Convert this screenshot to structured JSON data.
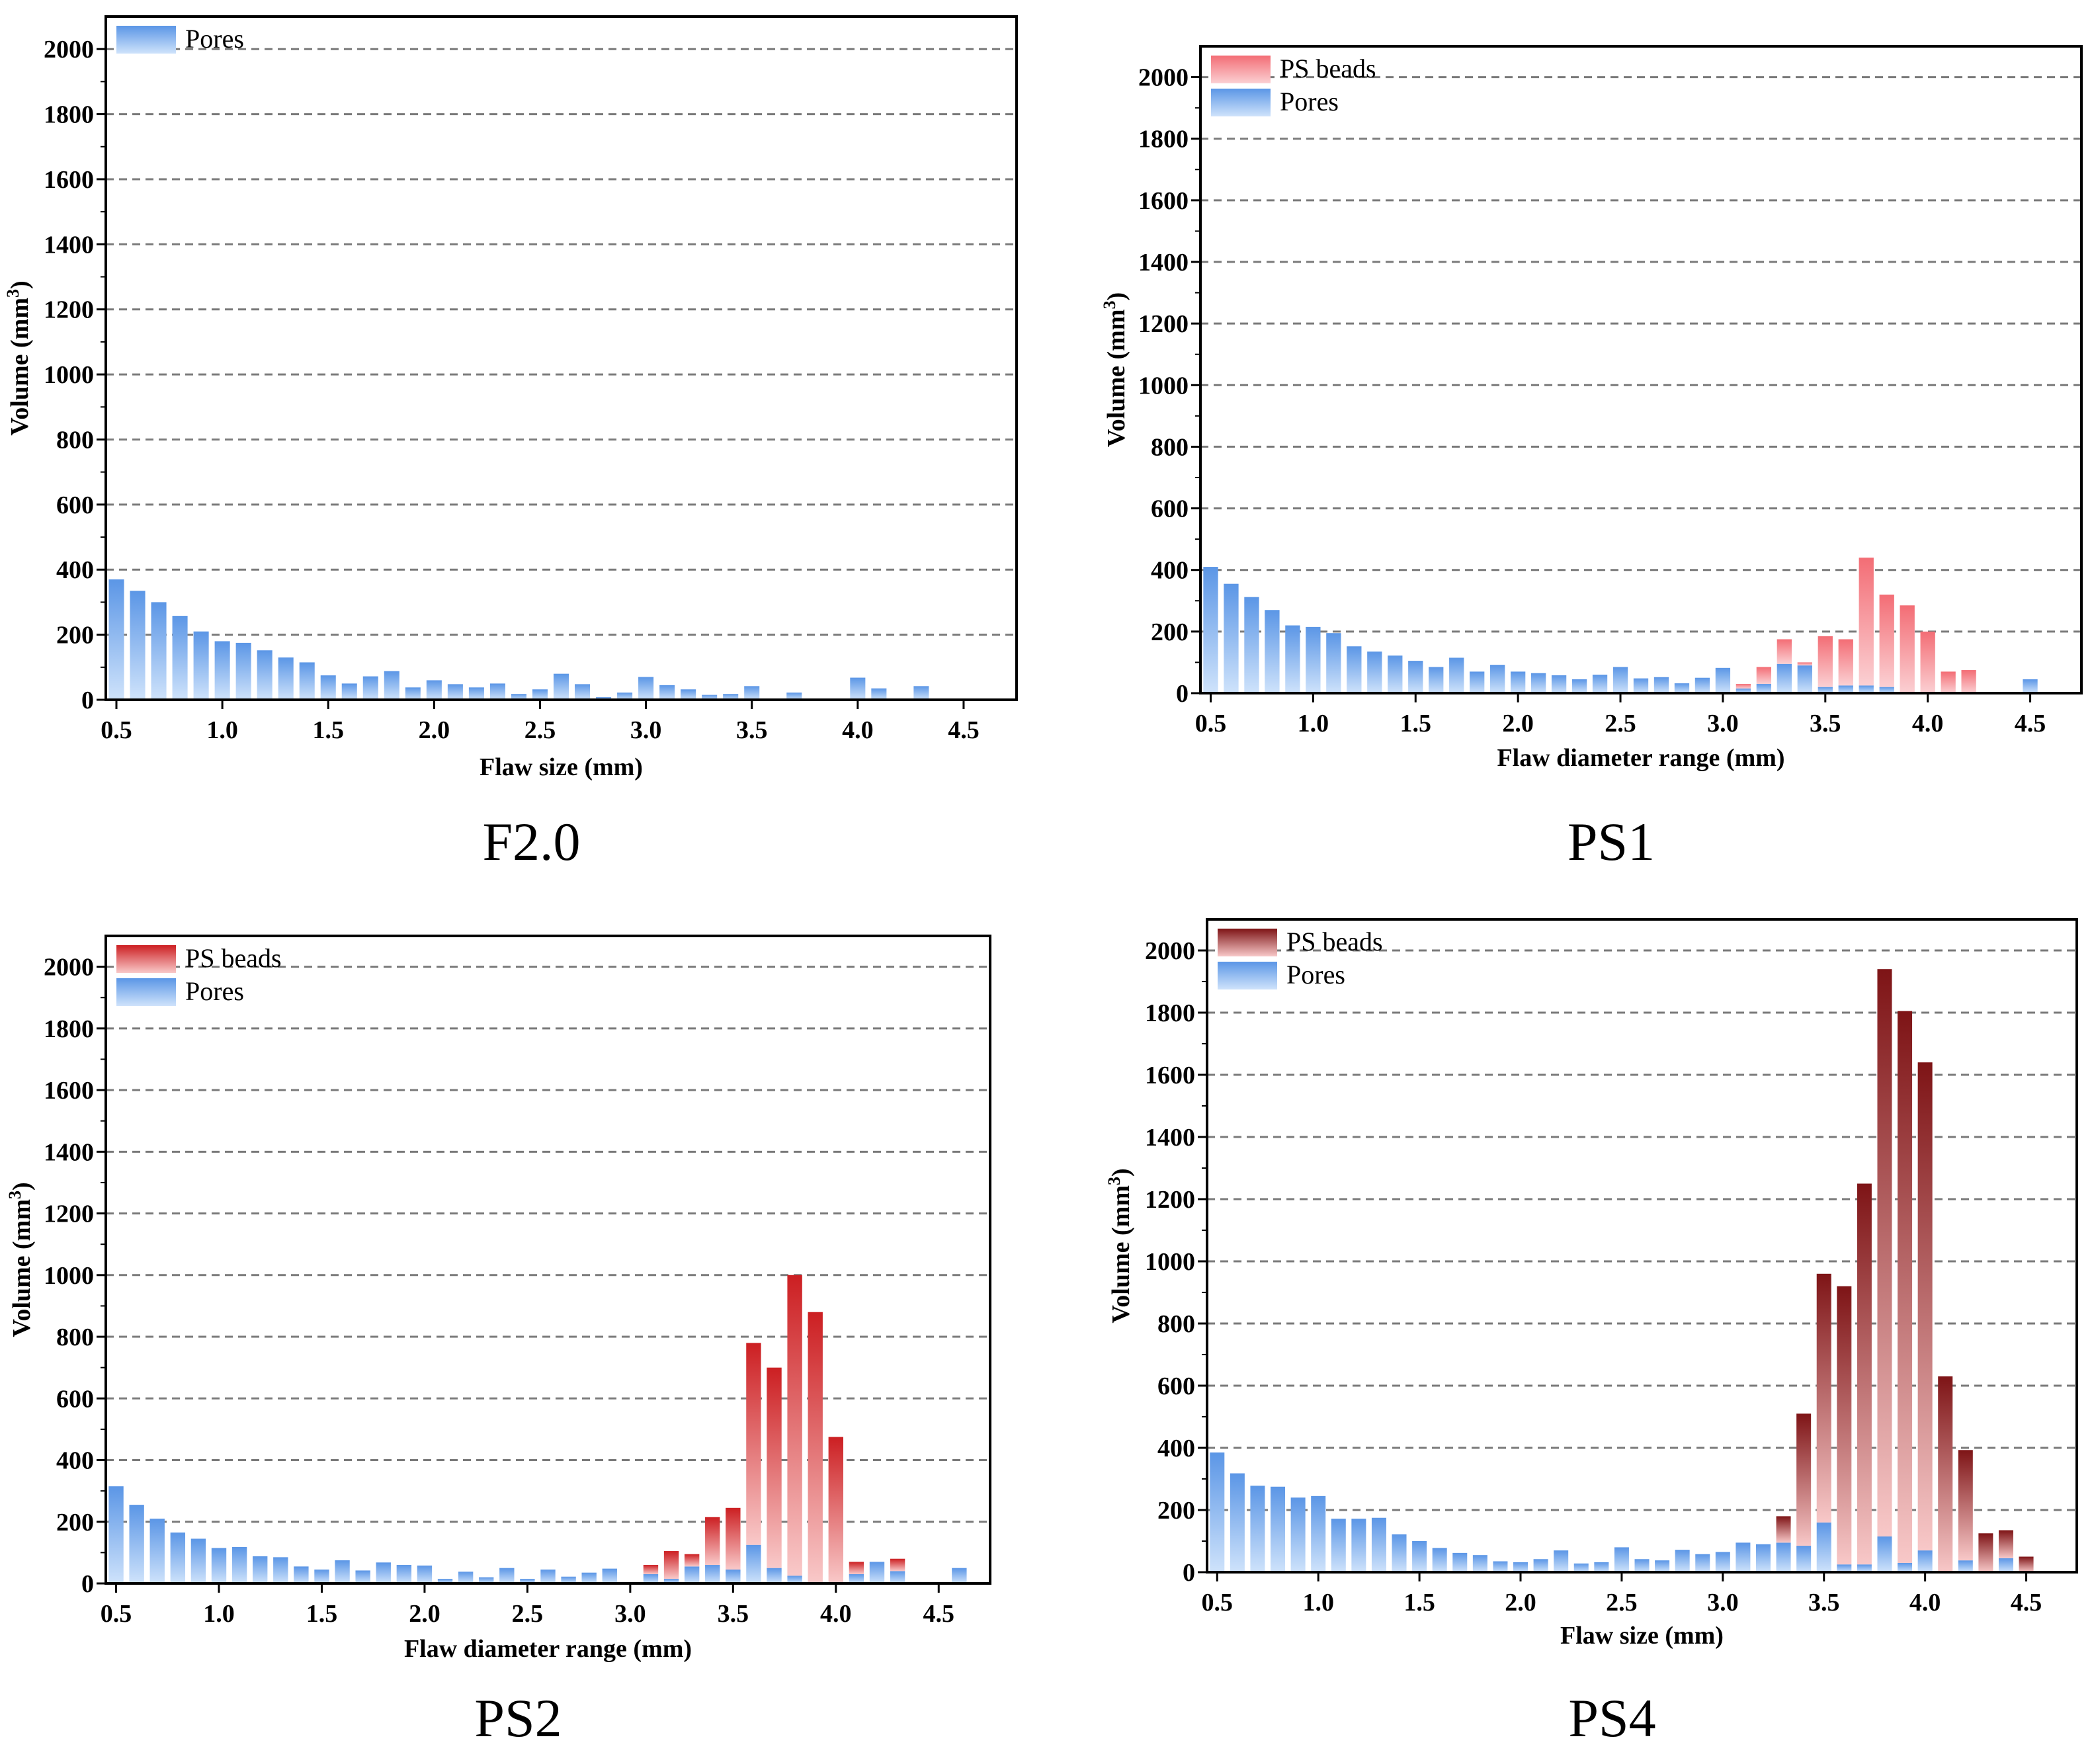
{
  "figure": {
    "panels": [
      "F2.0",
      "PS1",
      "PS2",
      "PS4"
    ]
  },
  "colors": {
    "pores_dark": "#5b96e6",
    "pores_light": "#cfe3fb",
    "ps1_dark": "#f36d75",
    "ps1_light": "#fbd0d3",
    "ps2_dark": "#cc1f22",
    "ps2_light": "#f9c9c9",
    "ps4_dark": "#7e1416",
    "ps4_light": "#f8c8c8",
    "grid": "#7a7a7a",
    "axis": "#000000"
  },
  "chart_data": [
    {
      "id": "F2.0",
      "type": "bar",
      "stacked": true,
      "caption": "F2.0",
      "xlabel": "Flaw size (mm)",
      "ylabel": "Volume (mm",
      "ylabel_sup": "3",
      "ylabel_end": ")",
      "xlim": [
        0.45,
        4.75
      ],
      "ylim": [
        0,
        2100
      ],
      "xticks": [
        "0.5",
        "1.0",
        "1.5",
        "2.0",
        "2.5",
        "3.0",
        "3.5",
        "4.0",
        "4.5"
      ],
      "yticks": [
        "0",
        "200",
        "400",
        "600",
        "800",
        "1000",
        "1200",
        "1400",
        "1600",
        "1800",
        "2000"
      ],
      "grid": "horizontal dashed",
      "legend": [
        "Pores"
      ],
      "legend_position": "top-left",
      "x": [
        0.5,
        0.6,
        0.7,
        0.8,
        0.9,
        1.0,
        1.1,
        1.2,
        1.3,
        1.4,
        1.5,
        1.6,
        1.7,
        1.8,
        1.9,
        2.0,
        2.1,
        2.2,
        2.3,
        2.4,
        2.5,
        2.6,
        2.7,
        2.8,
        2.9,
        3.0,
        3.1,
        3.2,
        3.3,
        3.4,
        3.5,
        3.6,
        3.7,
        3.8,
        3.9,
        4.0,
        4.1,
        4.2,
        4.3,
        4.4
      ],
      "series": [
        {
          "name": "Pores",
          "values": [
            370,
            335,
            300,
            258,
            210,
            180,
            175,
            152,
            130,
            115,
            75,
            50,
            72,
            88,
            38,
            60,
            48,
            38,
            50,
            18,
            32,
            80,
            48,
            8,
            22,
            70,
            45,
            32,
            15,
            18,
            42,
            0,
            22,
            0,
            0,
            68,
            35,
            0,
            42,
            0
          ]
        }
      ]
    },
    {
      "id": "PS1",
      "type": "bar",
      "stacked": true,
      "caption": "PS1",
      "xlabel": "Flaw diameter range (mm)",
      "ylabel": "Volume (mm",
      "ylabel_sup": "3",
      "ylabel_end": ")",
      "xlim": [
        0.45,
        4.75
      ],
      "ylim": [
        0,
        2100
      ],
      "xticks": [
        "0.5",
        "1.0",
        "1.5",
        "2.0",
        "2.5",
        "3.0",
        "3.5",
        "4.0",
        "4.5"
      ],
      "yticks": [
        "0",
        "200",
        "400",
        "600",
        "800",
        "1000",
        "1200",
        "1400",
        "1600",
        "1800",
        "2000"
      ],
      "grid": "horizontal dashed",
      "legend": [
        "PS beads",
        "Pores"
      ],
      "legend_position": "top-left",
      "x": [
        0.5,
        0.6,
        0.7,
        0.8,
        0.9,
        1.0,
        1.1,
        1.2,
        1.3,
        1.4,
        1.5,
        1.6,
        1.7,
        1.8,
        1.9,
        2.0,
        2.1,
        2.2,
        2.3,
        2.4,
        2.5,
        2.6,
        2.7,
        2.8,
        2.9,
        3.0,
        3.1,
        3.2,
        3.3,
        3.4,
        3.5,
        3.6,
        3.7,
        3.8,
        3.9,
        4.0,
        4.1,
        4.2,
        4.3,
        4.4,
        4.5
      ],
      "series": [
        {
          "name": "Pores",
          "values": [
            410,
            355,
            312,
            270,
            220,
            215,
            195,
            152,
            135,
            122,
            105,
            85,
            115,
            70,
            92,
            70,
            65,
            58,
            45,
            60,
            85,
            48,
            52,
            32,
            50,
            82,
            15,
            30,
            95,
            90,
            20,
            25,
            25,
            20,
            0,
            0,
            0,
            0,
            0,
            0,
            45
          ]
        },
        {
          "name": "PS beads",
          "values": [
            0,
            0,
            0,
            0,
            0,
            0,
            0,
            0,
            0,
            0,
            0,
            0,
            0,
            0,
            0,
            0,
            0,
            0,
            0,
            0,
            0,
            0,
            0,
            0,
            0,
            0,
            15,
            55,
            80,
            10,
            165,
            150,
            415,
            300,
            285,
            200,
            70,
            75,
            0,
            0,
            0
          ]
        }
      ]
    },
    {
      "id": "PS2",
      "type": "bar",
      "stacked": true,
      "caption": "PS2",
      "xlabel": "Flaw diameter range (mm)",
      "ylabel": "Volume (mm",
      "ylabel_sup": "3",
      "ylabel_end": ")",
      "xlim": [
        0.45,
        4.75
      ],
      "ylim": [
        0,
        2100
      ],
      "xticks": [
        "0.5",
        "1.0",
        "1.5",
        "2.0",
        "2.5",
        "3.0",
        "3.5",
        "4.0",
        "4.5"
      ],
      "yticks": [
        "0",
        "200",
        "400",
        "600",
        "800",
        "1000",
        "1200",
        "1400",
        "1600",
        "1800",
        "2000"
      ],
      "grid": "horizontal dashed",
      "legend": [
        "PS beads",
        "Pores"
      ],
      "legend_position": "top-left",
      "x": [
        0.5,
        0.6,
        0.7,
        0.8,
        0.9,
        1.0,
        1.1,
        1.2,
        1.3,
        1.4,
        1.5,
        1.6,
        1.7,
        1.8,
        1.9,
        2.0,
        2.1,
        2.2,
        2.3,
        2.4,
        2.5,
        2.6,
        2.7,
        2.8,
        2.9,
        3.0,
        3.1,
        3.2,
        3.3,
        3.4,
        3.5,
        3.6,
        3.7,
        3.8,
        3.9,
        4.0,
        4.1,
        4.2,
        4.3,
        4.4,
        4.5,
        4.6
      ],
      "series": [
        {
          "name": "Pores",
          "values": [
            315,
            255,
            210,
            165,
            145,
            115,
            118,
            88,
            85,
            55,
            45,
            75,
            42,
            68,
            60,
            58,
            15,
            38,
            20,
            50,
            15,
            45,
            22,
            35,
            48,
            0,
            30,
            15,
            55,
            60,
            45,
            125,
            50,
            25,
            0,
            0,
            30,
            70,
            40,
            0,
            0,
            50
          ]
        },
        {
          "name": "PS beads",
          "values": [
            0,
            0,
            0,
            0,
            0,
            0,
            0,
            0,
            0,
            0,
            0,
            0,
            0,
            0,
            0,
            0,
            0,
            0,
            0,
            0,
            0,
            0,
            0,
            0,
            0,
            0,
            30,
            90,
            40,
            155,
            200,
            655,
            650,
            975,
            880,
            475,
            40,
            0,
            40,
            0,
            0,
            0
          ]
        }
      ]
    },
    {
      "id": "PS4",
      "type": "bar",
      "stacked": true,
      "caption": "PS4",
      "xlabel": "Flaw size (mm)",
      "ylabel": "Volume (mm",
      "ylabel_sup": "3",
      "ylabel_end": ")",
      "xlim": [
        0.45,
        4.75
      ],
      "ylim": [
        0,
        2100
      ],
      "xticks": [
        "0.5",
        "1.0",
        "1.5",
        "2.0",
        "2.5",
        "3.0",
        "3.5",
        "4.0",
        "4.5"
      ],
      "yticks": [
        "0",
        "200",
        "400",
        "600",
        "800",
        "1000",
        "1200",
        "1400",
        "1600",
        "1800",
        "2000"
      ],
      "grid": "horizontal dashed",
      "legend": [
        "PS beads",
        "Pores"
      ],
      "legend_position": "top-left",
      "x": [
        0.5,
        0.6,
        0.7,
        0.8,
        0.9,
        1.0,
        1.1,
        1.2,
        1.3,
        1.4,
        1.5,
        1.6,
        1.7,
        1.8,
        1.9,
        2.0,
        2.1,
        2.2,
        2.3,
        2.4,
        2.5,
        2.6,
        2.7,
        2.8,
        2.9,
        3.0,
        3.1,
        3.2,
        3.3,
        3.4,
        3.5,
        3.6,
        3.7,
        3.8,
        3.9,
        4.0,
        4.1,
        4.2,
        4.3,
        4.4,
        4.5
      ],
      "series": [
        {
          "name": "Pores",
          "values": [
            385,
            318,
            278,
            275,
            240,
            245,
            172,
            172,
            175,
            122,
            100,
            78,
            62,
            55,
            35,
            32,
            42,
            70,
            28,
            32,
            80,
            42,
            38,
            72,
            58,
            65,
            95,
            90,
            95,
            85,
            160,
            25,
            25,
            115,
            30,
            70,
            0,
            38,
            0,
            45,
            0
          ]
        },
        {
          "name": "PS beads",
          "values": [
            0,
            0,
            0,
            0,
            0,
            0,
            0,
            0,
            0,
            0,
            0,
            0,
            0,
            0,
            0,
            0,
            0,
            0,
            0,
            0,
            0,
            0,
            0,
            0,
            0,
            0,
            0,
            0,
            85,
            425,
            800,
            895,
            1225,
            1825,
            1775,
            1570,
            630,
            355,
            125,
            90,
            50
          ]
        }
      ]
    }
  ]
}
